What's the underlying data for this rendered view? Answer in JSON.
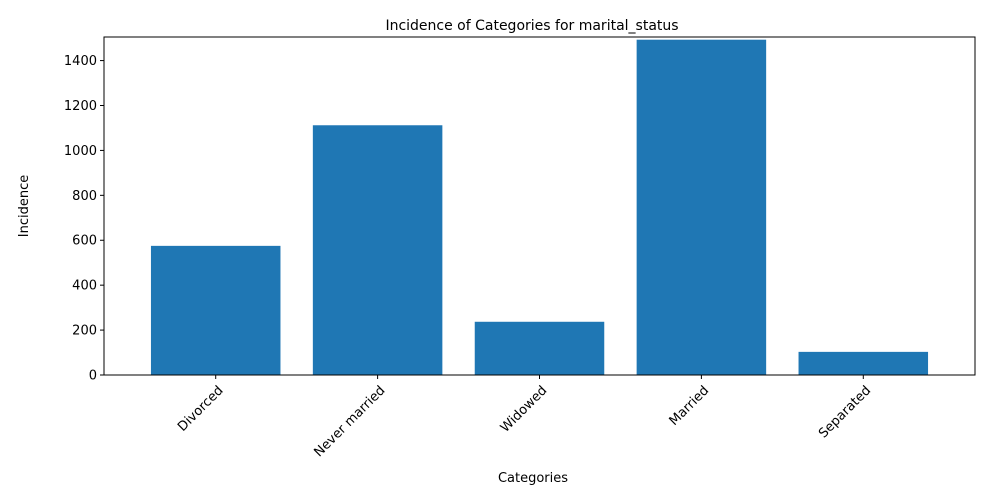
{
  "chart_data": {
    "type": "bar",
    "title": "Incidence of Categories for marital_status",
    "xlabel": "Categories",
    "ylabel": "Incidence",
    "categories": [
      "Divorced",
      "Never married",
      "Widowed",
      "Married",
      "Separated"
    ],
    "values": [
      575,
      1112,
      237,
      1493,
      103
    ],
    "ylim": [
      0,
      1505
    ],
    "yticks": [
      0,
      200,
      400,
      600,
      800,
      1000,
      1200,
      1400
    ],
    "xtick_rotation_deg": 45,
    "grid": false,
    "legend": "none",
    "bar_color": "#1f77b4"
  }
}
